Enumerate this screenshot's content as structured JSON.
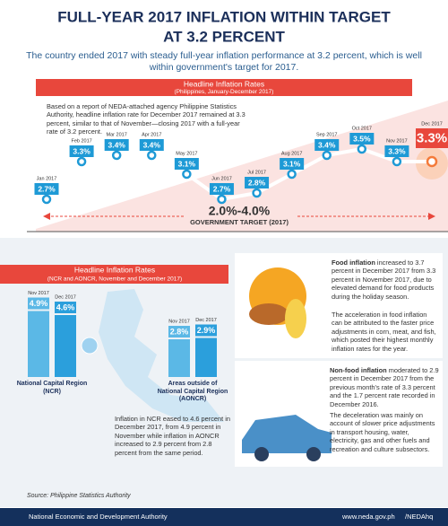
{
  "header": {
    "title": [
      "FULL-YEAR 2017 INFLATION WITHIN TARGET",
      "AT 3.2 PERCENT"
    ],
    "intro": "The country ended 2017 with steady full-year inflation performance at 3.2 percent, which is well within government's target for 2017."
  },
  "chart_data": [
    {
      "type": "line",
      "title": "Headline Inflation Rates",
      "subtitle": "(Philippines, January-December 2017)",
      "note": "Based on a report of NEDA-attached agency Philippine Statistics Authority, headline inflation rate for December 2017 remained at 3.3 percent, similar to that of November—closing 2017 with a full-year rate of 3.2 percent.",
      "categories": [
        "Jan 2017",
        "Feb 2017",
        "Mar 2017",
        "Apr 2017",
        "May 2017",
        "Jun 2017",
        "Jul 2017",
        "Aug 2017",
        "Sep 2017",
        "Oct 2017",
        "Nov 2017",
        "Dec 2017"
      ],
      "values": [
        2.7,
        3.3,
        3.4,
        3.4,
        3.1,
        2.7,
        2.8,
        3.1,
        3.4,
        3.5,
        3.3,
        3.3
      ],
      "value_labels": [
        "2.7%",
        "3.3%",
        "3.4%",
        "3.4%",
        "3.1%",
        "2.7%",
        "2.8%",
        "3.1%",
        "3.4%",
        "3.5%",
        "3.3%",
        "3.3%"
      ],
      "color": "#1e9ad6",
      "target_range": "2.0%-4.0%",
      "target_label": "GOVERNMENT TARGET (2017)"
    },
    {
      "type": "bar",
      "title": "Headline Inflation Rates",
      "subtitle": "(NCR and AONCR, November and December 2017)",
      "categories": [
        "National Capital Region (NCR)",
        "Areas outside of National Capital Region (AONCR)"
      ],
      "series": [
        {
          "name": "Nov 2017",
          "color": "#5bb8e6",
          "values": [
            4.9,
            2.8
          ],
          "value_labels": [
            "4.9%",
            "2.8%"
          ]
        },
        {
          "name": "Dec 2017",
          "color": "#2b9fdc",
          "values": [
            4.6,
            2.9
          ],
          "value_labels": [
            "4.6%",
            "2.9%"
          ]
        }
      ],
      "note": "Inflation in NCR eased to 4.6 percent in December 2017, from 4.9 percent in November while inflation in AONCR increased to 2.9 percent from 2.8 percent from the same period."
    }
  ],
  "food": {
    "lead": "Food inflation",
    "text": "increased to 3.7 percent in December 2017 from 3.3 percent in November 2017, due to elevated demand for food products during the holiday season.",
    "detail": "The acceleration in food inflation can be attributed to the faster price adjustments in corn, meat, and fish, which posted their highest monthly inflation rates for the year."
  },
  "nonfood": {
    "lead": "Non-food inflation",
    "text": "moderated to 2.9 percent in December 2017 from the previous month's rate of 3.3 percent and the 1.7 percent rate recorded in December 2016.",
    "detail": "The deceleration was mainly on account of slower price adjustments in transport housing, water, electricity, gas and other fuels and recreation and culture subsectors."
  },
  "source": "Source: Philippine Statistics Authority",
  "footer": {
    "agency": "National Economic and Development Authority",
    "website": "www.neda.gov.ph",
    "social": "/NEDAhq"
  }
}
